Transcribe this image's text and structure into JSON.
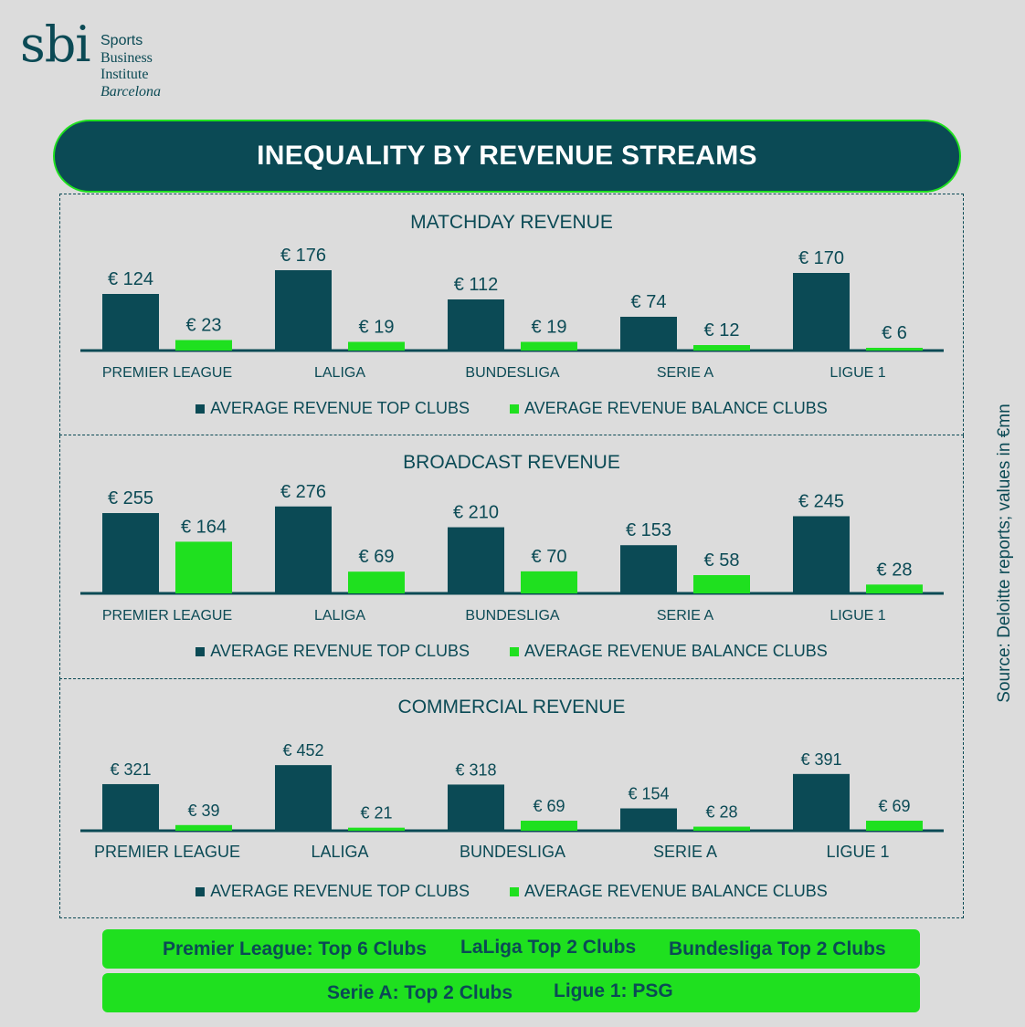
{
  "logo": {
    "mark": "sbi",
    "line1": "Sports",
    "line2": "Business",
    "line3": "Institute",
    "line4": "Barcelona"
  },
  "banner": {
    "title": "INEQUALITY BY REVENUE STREAMS"
  },
  "source_note": "Source: Deloitte reports; values in €mn",
  "colors": {
    "top": "#0b4a55",
    "balance": "#1fe01f",
    "background": "#dcdcdc"
  },
  "chart_data": [
    {
      "type": "bar",
      "title": "MATCHDAY REVENUE",
      "categories": [
        "PREMIER LEAGUE",
        "LALIGA",
        "BUNDESLIGA",
        "SERIE A",
        "LIGUE 1"
      ],
      "series": [
        {
          "name": "AVERAGE REVENUE TOP CLUBS",
          "values": [
            124,
            176,
            112,
            74,
            170
          ]
        },
        {
          "name": "AVERAGE REVENUE BALANCE CLUBS",
          "values": [
            23,
            19,
            19,
            12,
            6
          ]
        }
      ],
      "value_prefix": "€ ",
      "legend": "bottom"
    },
    {
      "type": "bar",
      "title": "BROADCAST REVENUE",
      "categories": [
        "PREMIER LEAGUE",
        "LALIGA",
        "BUNDESLIGA",
        "SERIE A",
        "LIGUE 1"
      ],
      "series": [
        {
          "name": "AVERAGE REVENUE TOP CLUBS",
          "values": [
            255,
            276,
            210,
            153,
            245
          ]
        },
        {
          "name": "AVERAGE REVENUE BALANCE CLUBS",
          "values": [
            164,
            69,
            70,
            58,
            28
          ]
        }
      ],
      "value_prefix": "€ ",
      "legend": "bottom"
    },
    {
      "type": "bar",
      "title": "COMMERCIAL REVENUE",
      "categories": [
        "PREMIER LEAGUE",
        "LALIGA",
        "BUNDESLIGA",
        "SERIE A",
        "LIGUE 1"
      ],
      "series": [
        {
          "name": "AVERAGE REVENUE TOP CLUBS",
          "values": [
            321,
            452,
            318,
            154,
            391
          ]
        },
        {
          "name": "AVERAGE REVENUE BALANCE CLUBS",
          "values": [
            39,
            21,
            69,
            28,
            69
          ]
        }
      ],
      "value_prefix": "€ ",
      "legend": "bottom"
    }
  ],
  "notes": {
    "row1": [
      "Premier League: Top 6 Clubs",
      "LaLiga Top 2 Clubs",
      "Bundesliga Top 2 Clubs"
    ],
    "row2": [
      "Serie A: Top 2 Clubs",
      "Ligue 1: PSG"
    ]
  }
}
